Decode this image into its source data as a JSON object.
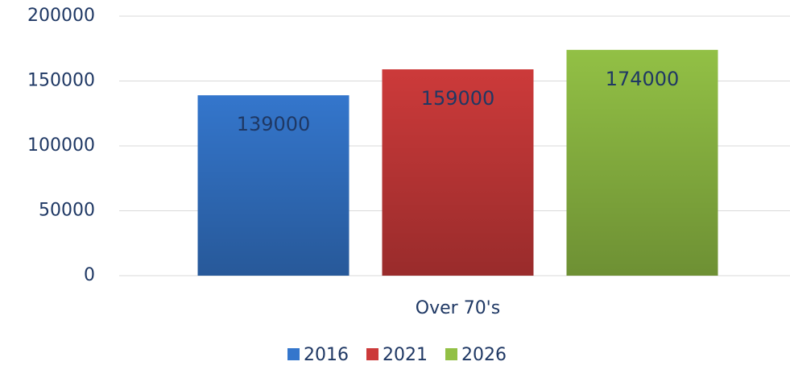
{
  "chart_data": {
    "type": "bar",
    "categories": [
      "Over 70's"
    ],
    "series": [
      {
        "name": "2016",
        "color": "#3476cc",
        "values": [
          139000
        ]
      },
      {
        "name": "2021",
        "color": "#cc3a3a",
        "values": [
          159000
        ]
      },
      {
        "name": "2026",
        "color": "#92c045",
        "values": [
          174000
        ]
      }
    ],
    "ylim": [
      0,
      200000
    ],
    "yticks": [
      0,
      50000,
      100000,
      150000,
      200000
    ],
    "grid": true,
    "legend": "bottom"
  }
}
